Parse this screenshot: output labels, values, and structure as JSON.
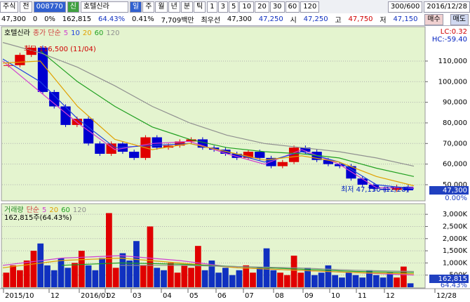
{
  "toolbar": {
    "market": "주식",
    "mode": "전",
    "code": "008770",
    "name_badge": "신",
    "name": "호텔신라",
    "periods": [
      "일",
      "주",
      "월",
      "년",
      "분",
      "틱"
    ],
    "intervals": [
      "1",
      "3",
      "5",
      "10",
      "20",
      "30",
      "60",
      "120"
    ],
    "count": "300/600",
    "date": "2016/12/28"
  },
  "quote": {
    "price": "47,300",
    "change": "0",
    "change_rate": "0%",
    "volume": "162,815",
    "volume_rate": "64.43%",
    "turnover": "0.41%",
    "amount": "7,709백만",
    "best_label": "최우선",
    "best_ask": "47,300",
    "best_bid": "47,250",
    "open_label": "시",
    "open": "47,250",
    "high_label": "고",
    "high": "47,750",
    "low_label": "저",
    "low": "47,150",
    "buy": "매수",
    "sell": "매도"
  },
  "chart_data": [
    {
      "type": "candlestick",
      "title": "호텔신라",
      "legend_prefix": "종가 단순",
      "up_color": "#e00000",
      "down_color": "#0000d0",
      "close": [
        108000,
        113000,
        116500,
        95000,
        88000,
        79000,
        82000,
        70000,
        65000,
        70000,
        66000,
        63000,
        73000,
        68000,
        69000,
        71000,
        72000,
        68000,
        67000,
        65000,
        63000,
        66000,
        63000,
        59000,
        61000,
        68000,
        66000,
        62000,
        60000,
        59000,
        53000,
        50000,
        48000,
        47500,
        49000,
        47300
      ],
      "series": [
        {
          "name": "5",
          "color": "#d040d0",
          "values": [
            110000,
            95000,
            80000,
            67000,
            70000,
            71000,
            65000,
            60000,
            67000,
            60000,
            48500,
            48500
          ]
        },
        {
          "name": "10",
          "color": "#2040e0",
          "values": [
            111000,
            100000,
            82000,
            68000,
            69000,
            70000,
            66000,
            61000,
            66000,
            61000,
            50000,
            48000
          ]
        },
        {
          "name": "20",
          "color": "#e0a000",
          "values": [
            109000,
            110000,
            88000,
            72000,
            67000,
            70000,
            66000,
            62000,
            64000,
            61000,
            54000,
            49500
          ]
        },
        {
          "name": "60",
          "color": "#20a020",
          "values": [
            null,
            115000,
            100000,
            88000,
            78000,
            72000,
            68000,
            66000,
            65000,
            63000,
            58000,
            54000
          ]
        },
        {
          "name": "120",
          "color": "#909090",
          "values": [
            119000,
            114000,
            107000,
            98000,
            88000,
            80000,
            74000,
            70000,
            68000,
            66000,
            63000,
            59000
          ]
        }
      ],
      "ylim": [
        42500,
        126000
      ],
      "yticks": [
        {
          "value": 50000,
          "label": "50,000"
        },
        {
          "value": 60000,
          "label": "60,000"
        },
        {
          "value": 70000,
          "label": "70,000"
        },
        {
          "value": 80000,
          "label": "80,000"
        },
        {
          "value": 90000,
          "label": "90,000"
        },
        {
          "value": 100000,
          "label": "100,000"
        },
        {
          "value": 110000,
          "label": "110,000"
        }
      ],
      "grid": true,
      "high_annotation": "최고 116,500 (11/04)",
      "low_annotation": "최저 47,150 (12/28)",
      "lc": "LC:0.32",
      "hc": "HC:-59.40",
      "last_label": "47,300",
      "last_rate": "0.00%",
      "xticks": [
        "2015/10",
        "12",
        "2016/01",
        "02",
        "03",
        "04",
        "05",
        "06",
        "07",
        "08",
        "09",
        "10",
        "11",
        "12",
        "12/28"
      ]
    },
    {
      "type": "volume",
      "title": "거래량",
      "legend_prefix": "단순",
      "summary": "162,815주(64.43%)",
      "color": "#1030c0",
      "up_color": "#e00000",
      "values": [
        600000,
        900000,
        700000,
        1100000,
        1500000,
        1800000,
        900000,
        700000,
        1200000,
        800000,
        1000000,
        1500000,
        900000,
        700000,
        1200000,
        3050000,
        800000,
        1400000,
        1100000,
        1900000,
        900000,
        2500000,
        800000,
        700000,
        1000000,
        600000,
        900000,
        800000,
        1700000,
        700000,
        1100000,
        600000,
        800000,
        500000,
        700000,
        900000,
        600000,
        800000,
        1600000,
        700000,
        600000,
        500000,
        1300000,
        600000,
        800000,
        500000,
        600000,
        900000,
        500000,
        400000,
        600000,
        500000,
        400000,
        700000,
        500000,
        400000,
        600000,
        400000,
        850000,
        162815
      ],
      "series": [
        {
          "name": "5",
          "color": "#d040d0",
          "values": [
            900000,
            1200000,
            1300000,
            1100000,
            800000,
            700000,
            600000,
            500000
          ]
        },
        {
          "name": "20",
          "color": "#e0a000",
          "values": [
            800000,
            1100000,
            1200000,
            1000000,
            800000,
            700000,
            600000,
            550000
          ]
        },
        {
          "name": "60",
          "color": "#20a020",
          "values": [
            null,
            900000,
            1000000,
            950000,
            850000,
            750000,
            650000,
            600000
          ]
        },
        {
          "name": "120",
          "color": "#909090",
          "values": [
            null,
            null,
            900000,
            900000,
            850000,
            800000,
            700000,
            650000
          ]
        }
      ],
      "ylim": [
        0,
        3380000
      ],
      "yticks": [
        {
          "value": 500000,
          "label": "500K"
        },
        {
          "value": 1000000,
          "label": "1,000K"
        },
        {
          "value": 1500000,
          "label": "1,500K"
        },
        {
          "value": 2000000,
          "label": "2,000K"
        },
        {
          "value": 2500000,
          "label": "2,500K"
        },
        {
          "value": 3000000,
          "label": "3,000K"
        }
      ],
      "grid": true,
      "last_label": "162,815",
      "last_rate": "64.43%"
    }
  ]
}
